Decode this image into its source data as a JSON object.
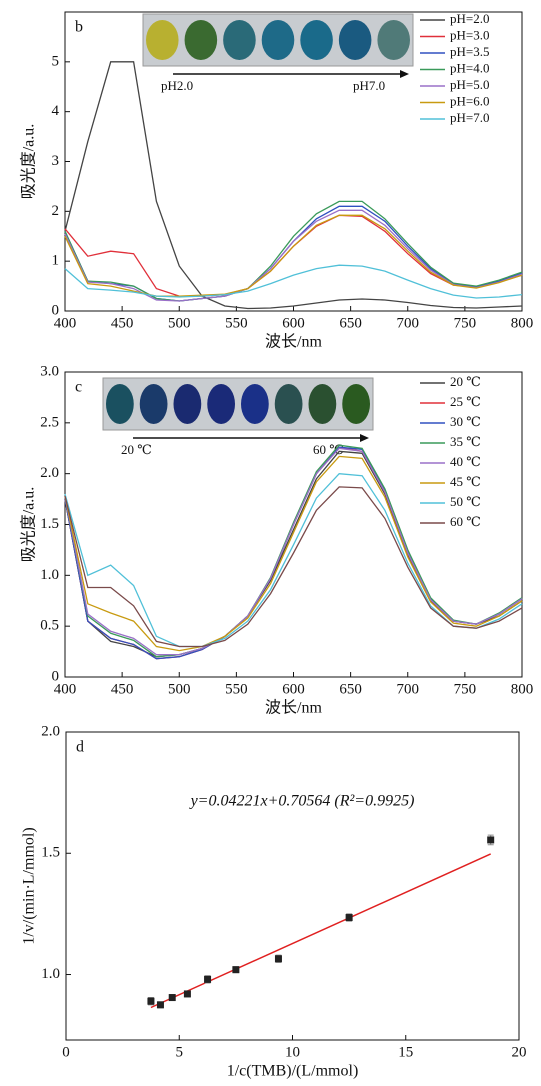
{
  "chart_data": [
    {
      "type": "line",
      "annotation": "b",
      "inset_labels": [
        "pH2.0",
        "pH7.0"
      ],
      "x_label": "波长/nm",
      "y_label": "吸光度/a.u.",
      "xlim": [
        400,
        800
      ],
      "xticks": [
        400,
        450,
        500,
        550,
        600,
        650,
        700,
        750,
        800
      ],
      "ylim": [
        0,
        6
      ],
      "yticks": [
        0,
        1,
        2,
        3,
        4,
        5
      ],
      "x": [
        400,
        420,
        440,
        460,
        480,
        500,
        520,
        540,
        560,
        580,
        600,
        620,
        640,
        660,
        680,
        700,
        720,
        740,
        760,
        780,
        800
      ],
      "series": [
        {
          "name": "pH=2.0",
          "color": "#444444",
          "values": [
            1.6,
            3.4,
            5.0,
            5.0,
            2.2,
            0.9,
            0.3,
            0.1,
            0.05,
            0.06,
            0.1,
            0.16,
            0.22,
            0.24,
            0.22,
            0.17,
            0.11,
            0.07,
            0.06,
            0.08,
            0.1
          ]
        },
        {
          "name": "pH=3.0",
          "color": "#e0303a",
          "values": [
            1.65,
            1.1,
            1.2,
            1.15,
            0.45,
            0.3,
            0.3,
            0.33,
            0.45,
            0.8,
            1.3,
            1.7,
            1.92,
            1.9,
            1.6,
            1.15,
            0.75,
            0.52,
            0.48,
            0.58,
            0.72
          ]
        },
        {
          "name": "pH=3.5",
          "color": "#3050c0",
          "values": [
            1.6,
            0.6,
            0.55,
            0.5,
            0.25,
            0.2,
            0.25,
            0.3,
            0.45,
            0.85,
            1.4,
            1.85,
            2.1,
            2.1,
            1.8,
            1.3,
            0.85,
            0.55,
            0.48,
            0.6,
            0.76
          ]
        },
        {
          "name": "pH=4.0",
          "color": "#3a9a5a",
          "values": [
            1.6,
            0.6,
            0.58,
            0.5,
            0.25,
            0.2,
            0.25,
            0.3,
            0.45,
            0.9,
            1.5,
            1.95,
            2.2,
            2.2,
            1.85,
            1.35,
            0.88,
            0.56,
            0.5,
            0.62,
            0.78
          ]
        },
        {
          "name": "pH=5.0",
          "color": "#9a70c8",
          "values": [
            1.55,
            0.58,
            0.55,
            0.45,
            0.22,
            0.2,
            0.25,
            0.3,
            0.45,
            0.85,
            1.4,
            1.8,
            2.02,
            2.02,
            1.72,
            1.25,
            0.82,
            0.53,
            0.47,
            0.58,
            0.74
          ]
        },
        {
          "name": "pH=6.0",
          "color": "#c89a10",
          "values": [
            1.5,
            0.55,
            0.5,
            0.4,
            0.3,
            0.3,
            0.32,
            0.34,
            0.45,
            0.8,
            1.3,
            1.72,
            1.92,
            1.92,
            1.65,
            1.2,
            0.78,
            0.52,
            0.46,
            0.57,
            0.72
          ]
        },
        {
          "name": "pH=7.0",
          "color": "#50c0d8",
          "values": [
            0.85,
            0.45,
            0.42,
            0.38,
            0.3,
            0.28,
            0.3,
            0.33,
            0.4,
            0.55,
            0.72,
            0.85,
            0.92,
            0.9,
            0.8,
            0.62,
            0.45,
            0.32,
            0.26,
            0.28,
            0.33
          ]
        }
      ]
    },
    {
      "type": "line",
      "annotation": "c",
      "inset_labels": [
        "20 ℃",
        "60 ℃"
      ],
      "x_label": "波长/nm",
      "y_label": "吸光度/a.u.",
      "xlim": [
        400,
        800
      ],
      "xticks": [
        400,
        450,
        500,
        550,
        600,
        650,
        700,
        750,
        800
      ],
      "ylim": [
        0,
        3
      ],
      "yticks": [
        0,
        0.5,
        {
          "value": 1,
          "label": "1.0"
        },
        1.5,
        {
          "value": 2,
          "label": "2.0"
        },
        2.5,
        {
          "value": 3,
          "label": "3.0"
        }
      ],
      "x": [
        400,
        420,
        440,
        460,
        480,
        500,
        520,
        540,
        560,
        580,
        600,
        620,
        640,
        660,
        680,
        700,
        720,
        740,
        760,
        780,
        800
      ],
      "series": [
        {
          "name": "20 ℃",
          "color": "#444444",
          "values": [
            1.75,
            0.55,
            0.35,
            0.3,
            0.2,
            0.22,
            0.28,
            0.4,
            0.6,
            0.95,
            1.45,
            1.95,
            2.22,
            2.2,
            1.8,
            1.2,
            0.75,
            0.55,
            0.52,
            0.6,
            0.75
          ]
        },
        {
          "name": "25 ℃",
          "color": "#e0303a",
          "values": [
            1.75,
            0.55,
            0.38,
            0.32,
            0.18,
            0.2,
            0.27,
            0.4,
            0.6,
            0.97,
            1.5,
            2.0,
            2.26,
            2.22,
            1.82,
            1.22,
            0.76,
            0.55,
            0.52,
            0.62,
            0.77
          ]
        },
        {
          "name": "30 ℃",
          "color": "#3050c0",
          "values": [
            1.75,
            0.55,
            0.38,
            0.32,
            0.18,
            0.2,
            0.27,
            0.4,
            0.6,
            0.97,
            1.5,
            2.0,
            2.26,
            2.24,
            1.84,
            1.24,
            0.77,
            0.55,
            0.52,
            0.62,
            0.77
          ]
        },
        {
          "name": "35 ℃",
          "color": "#3a9a5a",
          "values": [
            1.78,
            0.6,
            0.43,
            0.36,
            0.2,
            0.22,
            0.28,
            0.4,
            0.6,
            0.98,
            1.52,
            2.02,
            2.28,
            2.25,
            1.85,
            1.25,
            0.78,
            0.56,
            0.52,
            0.63,
            0.78
          ]
        },
        {
          "name": "40 ℃",
          "color": "#9a70c8",
          "values": [
            1.78,
            0.62,
            0.45,
            0.38,
            0.22,
            0.22,
            0.28,
            0.4,
            0.6,
            0.97,
            1.5,
            2.0,
            2.25,
            2.22,
            1.82,
            1.22,
            0.76,
            0.55,
            0.52,
            0.62,
            0.77
          ]
        },
        {
          "name": "45 ℃",
          "color": "#c89a10",
          "values": [
            1.78,
            0.72,
            0.63,
            0.55,
            0.3,
            0.26,
            0.3,
            0.4,
            0.58,
            0.92,
            1.42,
            1.92,
            2.17,
            2.15,
            1.77,
            1.18,
            0.74,
            0.53,
            0.5,
            0.6,
            0.75
          ]
        },
        {
          "name": "50 ℃",
          "color": "#50c0d8",
          "values": [
            1.8,
            1.0,
            1.1,
            0.9,
            0.4,
            0.3,
            0.3,
            0.38,
            0.55,
            0.86,
            1.3,
            1.76,
            2.0,
            1.98,
            1.64,
            1.12,
            0.7,
            0.5,
            0.48,
            0.57,
            0.72
          ]
        },
        {
          "name": "60 ℃",
          "color": "#7a4a4a",
          "values": [
            1.78,
            0.88,
            0.88,
            0.7,
            0.35,
            0.3,
            0.3,
            0.36,
            0.52,
            0.82,
            1.22,
            1.64,
            1.87,
            1.86,
            1.56,
            1.08,
            0.68,
            0.5,
            0.48,
            0.55,
            0.68
          ]
        }
      ]
    },
    {
      "type": "scatter",
      "annotation": "d",
      "equation": "y=0.04221x+0.70564 (R²=0.9925)",
      "x_label": "1/c(TMB)/(L/mmol)",
      "y_label": "1/v/(min·L/mmol)",
      "xlim": [
        0,
        20
      ],
      "xticks": [
        0,
        5,
        10,
        15,
        20
      ],
      "ylim": [
        0.73,
        2.0
      ],
      "yticks": [
        {
          "value": 1,
          "label": "1.0"
        },
        1.5,
        {
          "value": 2,
          "label": "2.0"
        }
      ],
      "x": [
        3.75,
        4.17,
        4.69,
        5.36,
        6.25,
        7.5,
        9.38,
        12.5,
        18.75
      ],
      "values": [
        0.89,
        0.875,
        0.905,
        0.92,
        0.98,
        1.02,
        1.065,
        1.235,
        1.555
      ],
      "errors": [
        0.015,
        0.012,
        0.012,
        0.012,
        0.015,
        0.012,
        0.015,
        0.015,
        0.02
      ],
      "color": "#222222",
      "fit": {
        "color": "#e02020",
        "x": [
          3.75,
          18.75
        ],
        "y": [
          0.864,
          1.497
        ]
      }
    }
  ]
}
